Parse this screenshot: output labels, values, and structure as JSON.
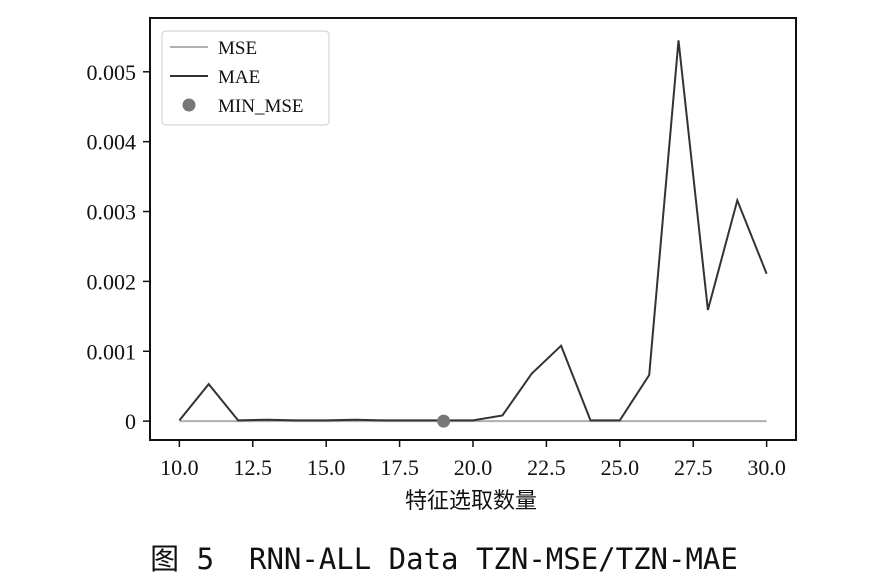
{
  "caption": "图 5  RNN-ALL Data TZN-MSE/TZN-MAE",
  "chart_data": {
    "type": "line",
    "xlabel": "特征选取数量",
    "ylabel": "",
    "xlim": [
      9,
      31
    ],
    "ylim": [
      -0.00027,
      0.00577
    ],
    "x_ticks": [
      10.0,
      12.5,
      15.0,
      17.5,
      20.0,
      22.5,
      25.0,
      27.5,
      30.0
    ],
    "x_tick_labels": [
      "10.0",
      "12.5",
      "15.0",
      "17.5",
      "20.0",
      "22.5",
      "25.0",
      "27.5",
      "30.0"
    ],
    "y_ticks": [
      0,
      0.001,
      0.002,
      0.003,
      0.004,
      0.005
    ],
    "y_tick_labels": [
      "0",
      "0.001",
      "0.002",
      "0.003",
      "0.004",
      "0.005"
    ],
    "grid": false,
    "legend_position": "top-left",
    "series": [
      {
        "name": "MSE",
        "color": "#b0b0b0",
        "x": [
          10,
          11,
          12,
          13,
          14,
          15,
          16,
          17,
          18,
          19,
          20,
          21,
          22,
          23,
          24,
          25,
          26,
          27,
          28,
          29,
          30
        ],
        "values": [
          0,
          0,
          0,
          0,
          0,
          0,
          0,
          0,
          0,
          0,
          0,
          0,
          0,
          0,
          0,
          0,
          0,
          0,
          0,
          0,
          0
        ]
      },
      {
        "name": "MAE",
        "color": "#333333",
        "x": [
          10,
          11,
          12,
          13,
          14,
          15,
          16,
          17,
          18,
          19,
          20,
          21,
          22,
          23,
          24,
          25,
          26,
          27,
          28,
          29,
          30
        ],
        "values": [
          1e-05,
          0.00053,
          1e-05,
          2e-05,
          1e-05,
          1e-05,
          2e-05,
          1e-05,
          1e-05,
          1e-05,
          1e-05,
          8e-05,
          0.00068,
          0.00108,
          1e-05,
          1e-05,
          0.00066,
          0.00545,
          0.00159,
          0.00316,
          0.00211
        ]
      }
    ],
    "markers": [
      {
        "name": "MIN_MSE",
        "color": "#777777",
        "x": 19,
        "y": 0
      }
    ]
  }
}
